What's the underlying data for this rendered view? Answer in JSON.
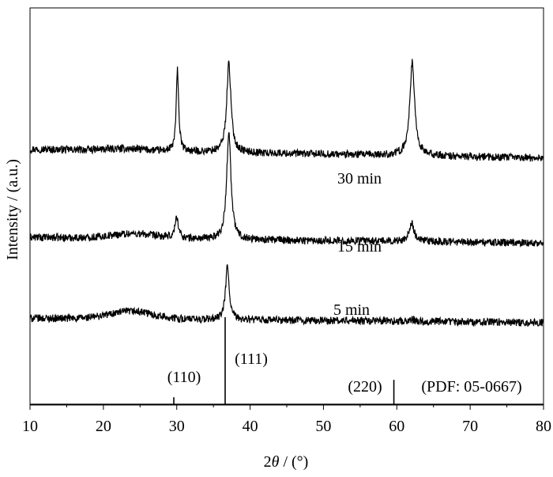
{
  "chart_data": {
    "type": "line",
    "title": "",
    "xlabel": {
      "pre": "2",
      "var": "θ",
      "post": " / (°)"
    },
    "ylabel": "Intensity / (a.u.)",
    "xlim": [
      10,
      80
    ],
    "x_ticks": [
      "10",
      "20",
      "30",
      "40",
      "50",
      "60",
      "70",
      "80"
    ],
    "grid": false,
    "series": [
      {
        "name": "30 min",
        "baseline_start": 0.56,
        "baseline_end": 0.37,
        "hump": {
          "center": 23,
          "width": 4,
          "height": 0.04
        },
        "peaks": [
          {
            "x": 30.1,
            "height": 1.72,
            "width": 0.2
          },
          {
            "x": 37.1,
            "height": 1.88,
            "width": 0.35
          },
          {
            "x": 62.1,
            "height": 1.96,
            "width": 0.4
          }
        ]
      },
      {
        "name": "15 min",
        "baseline_start": 0.3,
        "baseline_end": 0.18,
        "hump": {
          "center": 24,
          "width": 4.2,
          "height": 0.1
        },
        "peaks": [
          {
            "x": 30.0,
            "height": 0.45,
            "width": 0.28
          },
          {
            "x": 37.1,
            "height": 2.28,
            "width": 0.35
          },
          {
            "x": 62.0,
            "height": 0.4,
            "width": 0.4
          }
        ]
      },
      {
        "name": "5 min",
        "baseline_start": 0.03,
        "baseline_end": -0.06,
        "hump": {
          "center": 23.8,
          "width": 4.3,
          "height": 0.16
        },
        "peaks": [
          {
            "x": 36.9,
            "height": 1.12,
            "width": 0.3
          },
          {
            "x": 62.1,
            "height": 0.04,
            "width": 0.5
          }
        ]
      }
    ],
    "reference": {
      "label": "(PDF: 05-0667)",
      "lines": [
        {
          "x": 29.6,
          "label": "(110)",
          "height": 0.08
        },
        {
          "x": 36.6,
          "label": "(111)",
          "height": 1.0
        },
        {
          "x": 59.6,
          "label": "(220)",
          "height": 0.28
        }
      ]
    }
  }
}
